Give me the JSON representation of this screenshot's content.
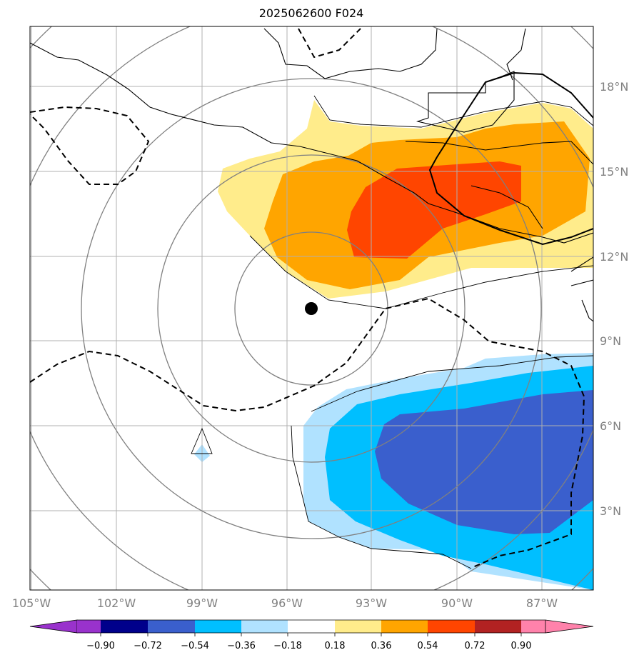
{
  "title": "2025062600 F024",
  "map": {
    "lon_labels": [
      "105°W",
      "102°W",
      "99°W",
      "96°W",
      "93°W",
      "90°W",
      "87°W"
    ],
    "lat_labels": [
      "18°N",
      "15°N",
      "12°N",
      "9°N",
      "6°N",
      "3°N"
    ]
  },
  "colorbar": {
    "ticks": [
      "−0.90",
      "−0.72",
      "−0.54",
      "−0.36",
      "−0.18",
      "0.18",
      "0.36",
      "0.54",
      "0.72",
      "0.90"
    ],
    "colors": {
      "under": "#9932cc",
      "bins": [
        "#00008b",
        "#3a5fcd",
        "#00bfff",
        "#b0e2ff",
        "#ffffff",
        "#ffec8b",
        "#ffa500",
        "#ff4500",
        "#b22222"
      ],
      "over": "#ff82ab"
    }
  },
  "colors": {
    "grid": "#b0b0b0",
    "label": "#808080",
    "coast": "#000000",
    "contour": "#808080"
  }
}
